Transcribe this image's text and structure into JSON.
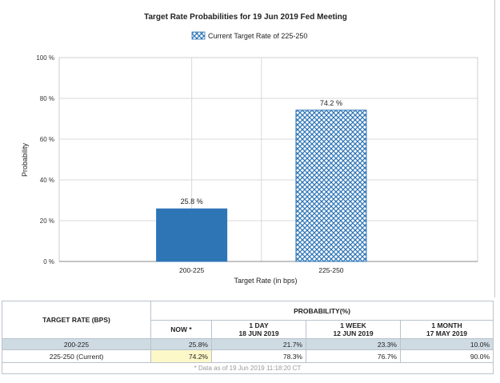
{
  "chart_data": {
    "type": "bar",
    "title": "Target Rate Probabilities for 19 Jun 2019 Fed Meeting",
    "legend": [
      "Current Target Rate of 225-250"
    ],
    "legend_position": "top",
    "categories": [
      "200-225",
      "225-250"
    ],
    "values": [
      25.8,
      74.2
    ],
    "data_labels": [
      "25.8 %",
      "74.2 %"
    ],
    "bar_styles": [
      "solid",
      "crosshatch"
    ],
    "xlabel": "Target Rate (in bps)",
    "ylabel": "Probability",
    "ylim": [
      0,
      100
    ],
    "yticks": [
      "0 %",
      "20 %",
      "40 %",
      "60 %",
      "80 %",
      "100 %"
    ],
    "colors": {
      "bar": "#2e75b6",
      "hatch": "#2e75b6",
      "grid": "#d9d9d9"
    },
    "grid": true
  },
  "table": {
    "col_target": "TARGET RATE (BPS)",
    "col_prob": "PROBABILITY(%)",
    "sub_headers": [
      {
        "line1": "NOW *",
        "line2": ""
      },
      {
        "line1": "1 DAY",
        "line2": "18 JUN 2019"
      },
      {
        "line1": "1 WEEK",
        "line2": "12 JUN 2019"
      },
      {
        "line1": "1 MONTH",
        "line2": "17 MAY 2019"
      }
    ],
    "rows": [
      {
        "rate": "200-225",
        "values": [
          "25.8%",
          "21.7%",
          "23.3%",
          "10.0%"
        ]
      },
      {
        "rate": "225-250 (Current)",
        "values": [
          "74.2%",
          "78.3%",
          "76.7%",
          "90.0%"
        ]
      }
    ],
    "footnote": "* Data as of 19 Jun 2019 11:18:20 CT"
  }
}
